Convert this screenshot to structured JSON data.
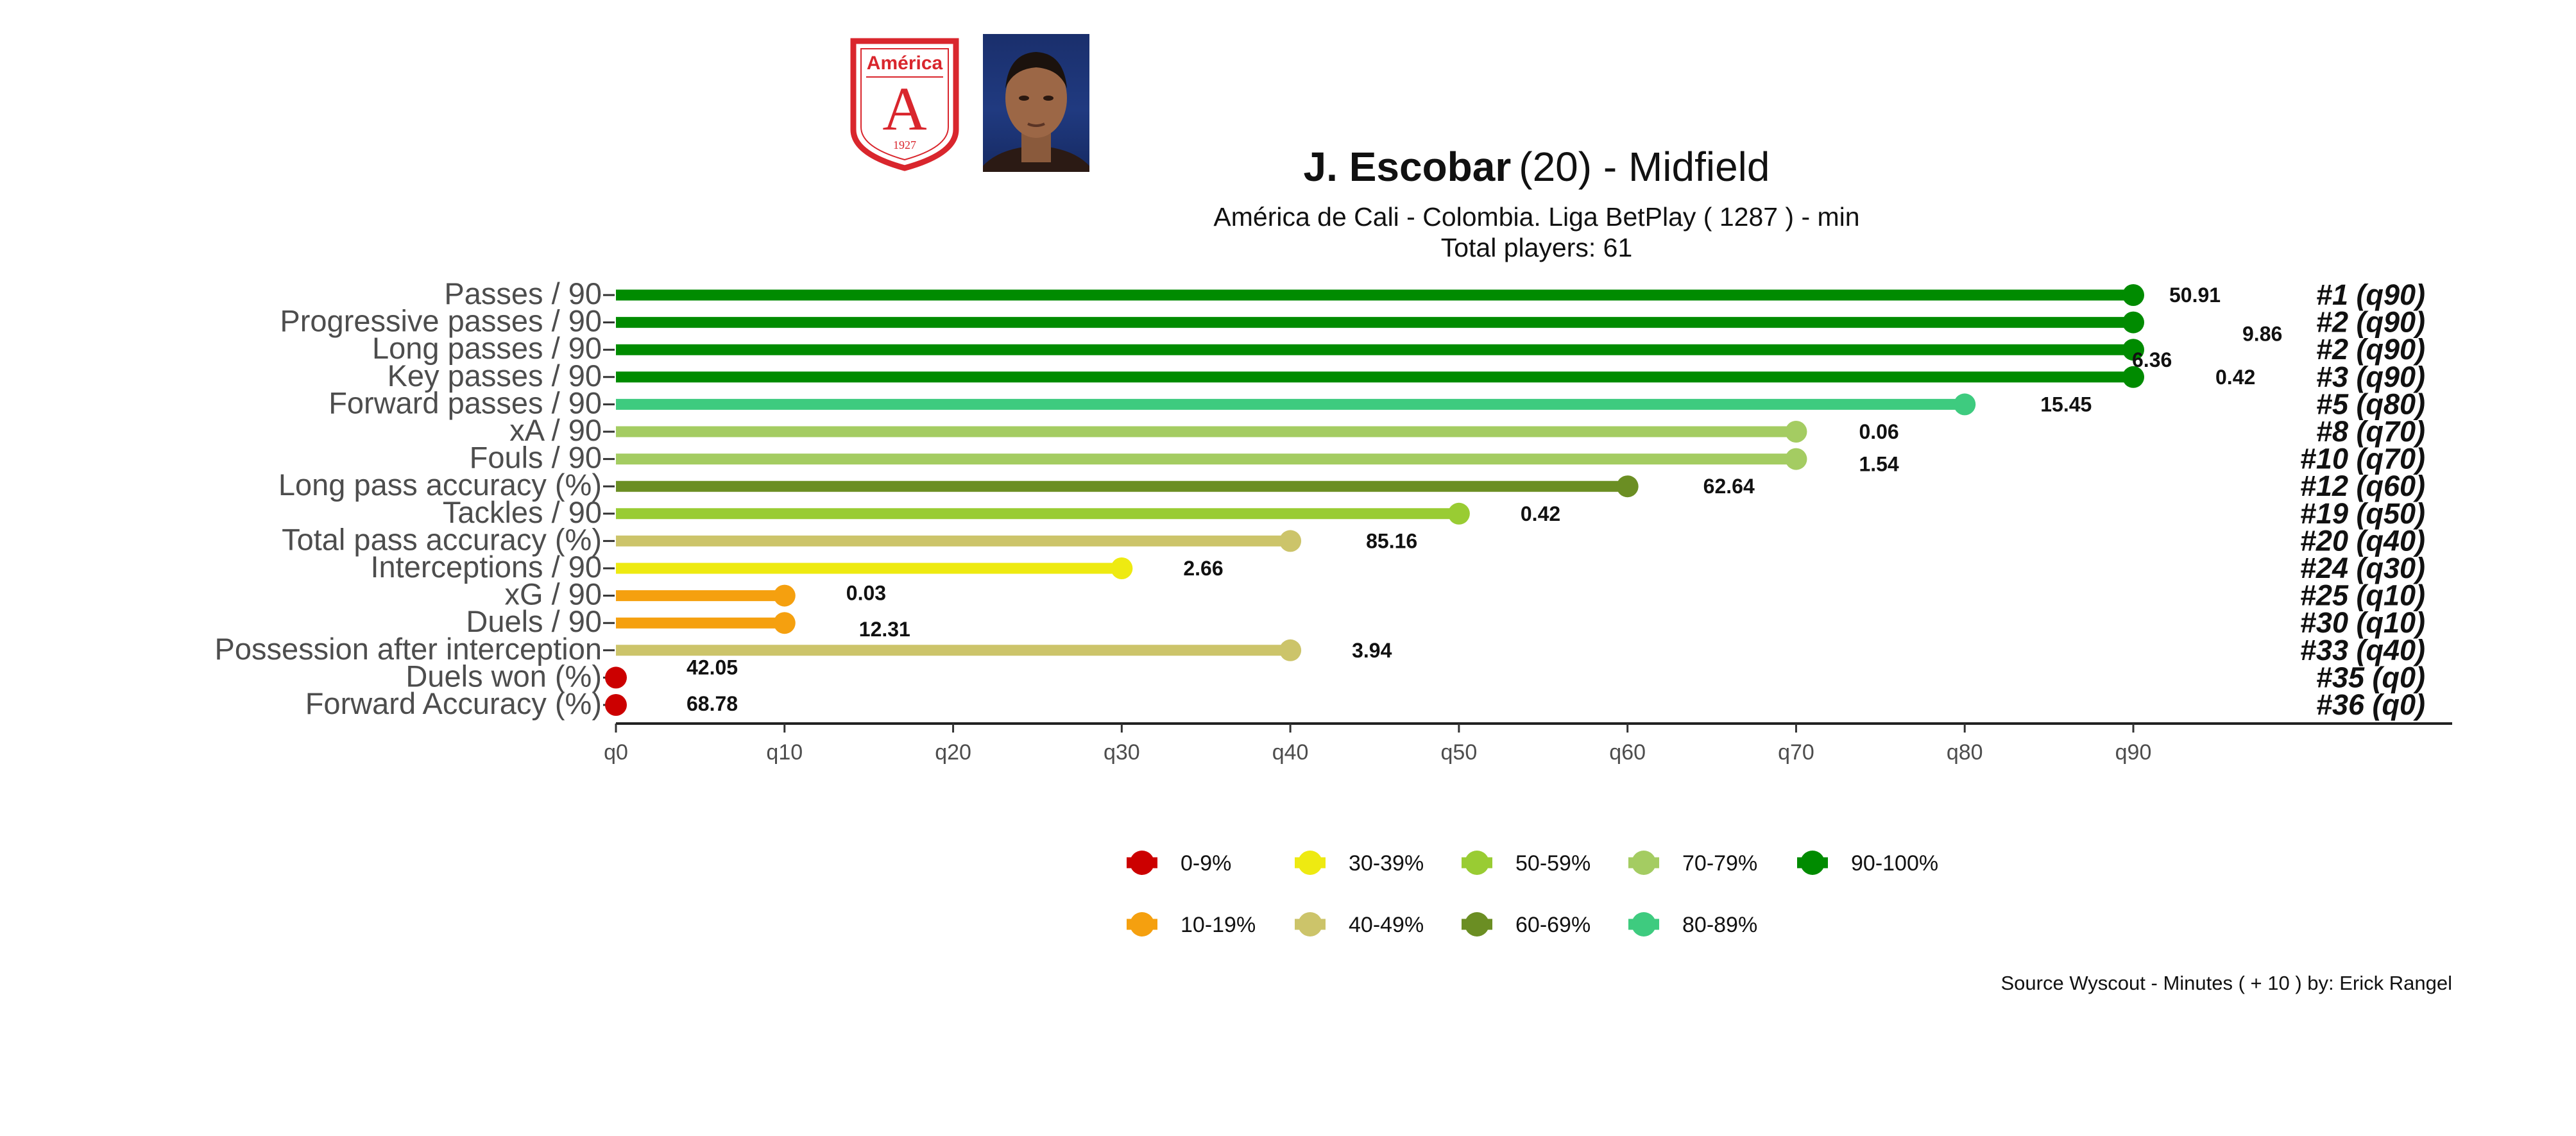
{
  "header": {
    "player_name": "J. Escobar",
    "age_position": "(20) -  Midfield",
    "subtitle": "América de Cali  -  Colombia. Liga BetPlay  ( 1287 ) - min",
    "total_players": "Total players:  61",
    "club_badge_text": "América",
    "club_badge_letter": "A",
    "club_badge_year": "1927"
  },
  "footer": {
    "source": "Source Wyscout - Minutes ( + 10 ) by: Erick Rangel"
  },
  "colors": {
    "0-9%": "#cc0000",
    "10-19%": "#f5a00f",
    "30-39%": "#eeea11",
    "40-49%": "#ccc46a",
    "50-59%": "#99cc33",
    "60-69%": "#6b8e23",
    "70-79%": "#a4cc62",
    "80-89%": "#3ecb7f",
    "90-100%": "#008b00"
  },
  "chart_data": {
    "type": "lollipop",
    "xlabel": "",
    "ylabel": "",
    "xlim": [
      0,
      90
    ],
    "x_ticks": [
      "q0",
      "q10",
      "q20",
      "q30",
      "q40",
      "q50",
      "q60",
      "q70",
      "q80",
      "q90"
    ],
    "metrics": [
      {
        "label": "Passes / 90",
        "percentile": 90,
        "value": "50.91",
        "rank": "#1 (q90)",
        "band": "90-100%"
      },
      {
        "label": "Progressive passes / 90",
        "percentile": 90,
        "value": "9.86",
        "rank": "#2 (q90)",
        "band": "90-100%"
      },
      {
        "label": "Long passes / 90",
        "percentile": 90,
        "value": "6.36",
        "rank": "#2 (q90)",
        "band": "90-100%"
      },
      {
        "label": "Key passes / 90",
        "percentile": 90,
        "value": "0.42",
        "rank": "#3 (q90)",
        "band": "90-100%"
      },
      {
        "label": "Forward passes / 90",
        "percentile": 80,
        "value": "15.45",
        "rank": "#5 (q80)",
        "band": "80-89%"
      },
      {
        "label": "xA / 90",
        "percentile": 70,
        "value": "0.06",
        "rank": "#8 (q70)",
        "band": "70-79%"
      },
      {
        "label": "Fouls / 90",
        "percentile": 70,
        "value": "1.54",
        "rank": "#10 (q70)",
        "band": "70-79%"
      },
      {
        "label": "Long pass accuracy (%)",
        "percentile": 60,
        "value": "62.64",
        "rank": "#12 (q60)",
        "band": "60-69%"
      },
      {
        "label": "Tackles / 90",
        "percentile": 50,
        "value": "0.42",
        "rank": "#19 (q50)",
        "band": "50-59%"
      },
      {
        "label": "Total pass accuracy (%)",
        "percentile": 40,
        "value": "85.16",
        "rank": "#20 (q40)",
        "band": "40-49%"
      },
      {
        "label": "Interceptions / 90",
        "percentile": 30,
        "value": "2.66",
        "rank": "#24 (q30)",
        "band": "30-39%"
      },
      {
        "label": "xG / 90",
        "percentile": 10,
        "value": "0.03",
        "rank": "#25 (q10)",
        "band": "10-19%"
      },
      {
        "label": "Duels / 90",
        "percentile": 10,
        "value": "12.31",
        "rank": "#30 (q10)",
        "band": "10-19%"
      },
      {
        "label": "Possession after interception",
        "percentile": 40,
        "value": "3.94",
        "rank": "#33 (q40)",
        "band": "40-49%"
      },
      {
        "label": "Duels won (%)",
        "percentile": 0,
        "value": "42.05",
        "rank": "#35 (q0)",
        "band": "0-9%"
      },
      {
        "label": "Forward Accuracy (%)",
        "percentile": 0,
        "value": "68.78",
        "rank": "#36 (q0)",
        "band": "0-9%"
      }
    ],
    "legend": {
      "position": "bottom",
      "items": [
        "0-9%",
        "10-19%",
        "30-39%",
        "40-49%",
        "50-59%",
        "60-69%",
        "70-79%",
        "80-89%",
        "90-100%"
      ]
    }
  }
}
